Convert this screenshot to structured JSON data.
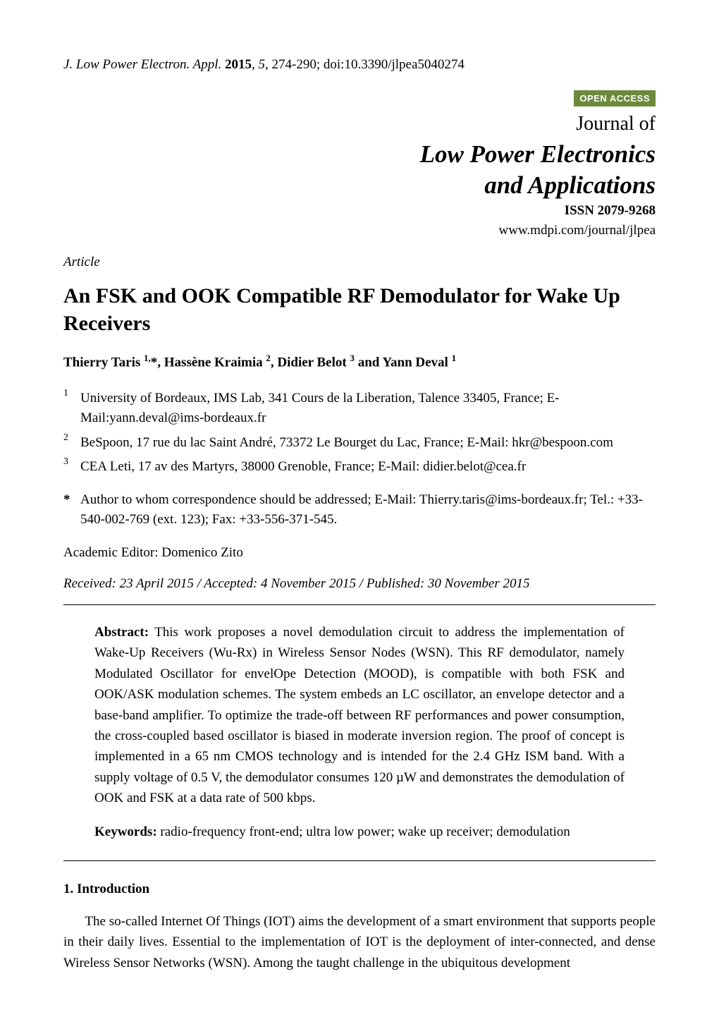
{
  "header": {
    "journal_abbr": "J. Low Power Electron. Appl.",
    "year": "2015",
    "volume": "5",
    "pages": "274-290",
    "doi": "doi:10.3390/jlpea5040274"
  },
  "badge": {
    "text": "OPEN ACCESS",
    "bg_color": "#6c8a3a",
    "fg_color": "#ffffff"
  },
  "journal": {
    "prefix": "Journal of",
    "name_line1": "Low Power Electronics",
    "name_line2": "and Applications",
    "issn": "ISSN 2079-9268",
    "url": "www.mdpi.com/journal/jlpea"
  },
  "article_label": "Article",
  "title": "An FSK and OOK Compatible RF Demodulator for Wake Up Receivers",
  "authors_html": "Thierry Taris <sup>1,</sup>*, Hassène Kraimia <sup>2</sup>, Didier Belot <sup>3</sup> and Yann Deval <sup>1</sup>",
  "affiliations": [
    {
      "num": "1",
      "text": "University of Bordeaux, IMS Lab, 341 Cours de la Liberation, Talence 33405, France; E-Mail:yann.deval@ims-bordeaux.fr"
    },
    {
      "num": "2",
      "text": "BeSpoon, 17 rue du lac Saint André, 73372 Le Bourget du Lac, France; E-Mail: hkr@bespoon.com"
    },
    {
      "num": "3",
      "text": "CEA Leti, 17 av des Martyrs, 38000 Grenoble, France; E-Mail: didier.belot@cea.fr"
    }
  ],
  "correspondence": {
    "star": "*",
    "text": "Author to whom correspondence should be addressed; E-Mail: Thierry.taris@ims-bordeaux.fr; Tel.: +33-540-002-769 (ext. 123); Fax: +33-556-371-545."
  },
  "editor": "Academic Editor: Domenico Zito",
  "dates": "Received: 23 April 2015 / Accepted: 4 November 2015 / Published: 30 November 2015",
  "abstract": {
    "label": "Abstract:",
    "text": "This work proposes a novel demodulation circuit to address the implementation of Wake-Up Receivers (Wu-Rx) in Wireless Sensor Nodes (WSN). This RF demodulator, namely Modulated Oscillator for envelOpe Detection (MOOD), is compatible with both FSK and OOK/ASK modulation schemes. The system embeds an LC oscillator, an envelope detector and a base-band amplifier. To optimize the trade-off between RF performances and power consumption, the cross-coupled based oscillator is biased in moderate inversion region. The proof of concept is implemented in a 65 nm CMOS technology and is intended for the 2.4 GHz ISM band. With a supply voltage of 0.5 V, the demodulator consumes 120 µW and demonstrates the demodulation of OOK and FSK at a data rate of 500 kbps."
  },
  "keywords": {
    "label": "Keywords:",
    "text": "radio-frequency front-end; ultra low power; wake up receiver; demodulation"
  },
  "section1": {
    "heading": "1. Introduction",
    "para": "The so-called Internet Of Things (IOT) aims the development of a smart environment that supports people in their daily lives. Essential to the implementation of IOT is the deployment of inter-connected, and dense Wireless Sensor Networks (WSN). Among the taught challenge in the ubiquitous development"
  },
  "style": {
    "page_bg": "#ffffff",
    "text_color": "#000000",
    "rule_color": "#000000",
    "body_fontsize_pt": 14,
    "title_fontsize_pt": 22,
    "journal_name_fontsize_pt": 26
  }
}
